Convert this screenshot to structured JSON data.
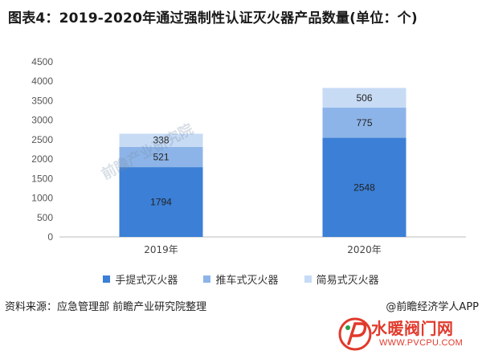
{
  "title": "图表4：2019-2020年通过强制性认证灭火器产品数量(单位：个)",
  "chart_data": {
    "type": "bar",
    "stacked": true,
    "categories": [
      "2019年",
      "2020年"
    ],
    "series": [
      {
        "name": "手提式灭火器",
        "color": "#3b7fd6",
        "values": [
          1794,
          2548
        ]
      },
      {
        "name": "推车式灭火器",
        "color": "#8db4e8",
        "values": [
          521,
          775
        ]
      },
      {
        "name": "简易式灭火器",
        "color": "#c7dbf5",
        "values": [
          338,
          506
        ]
      }
    ],
    "ylim": [
      0,
      4500
    ],
    "yticks": [
      0,
      500,
      1000,
      1500,
      2000,
      2500,
      3000,
      3500,
      4000,
      4500
    ],
    "grid": false,
    "legend_position": "bottom"
  },
  "legend": {
    "items": [
      "手提式灭火器",
      "推车式灭火器",
      "简易式灭火器"
    ]
  },
  "footer": {
    "source": "资料来源：应急管理部 前瞻产业研究院整理",
    "credit": "@前瞻经济学人APP"
  },
  "watermark": {
    "text": "前瞻产业研究院"
  },
  "logo": {
    "text": "水暖阀门网",
    "url": "WWW.PVCPU.COM"
  }
}
